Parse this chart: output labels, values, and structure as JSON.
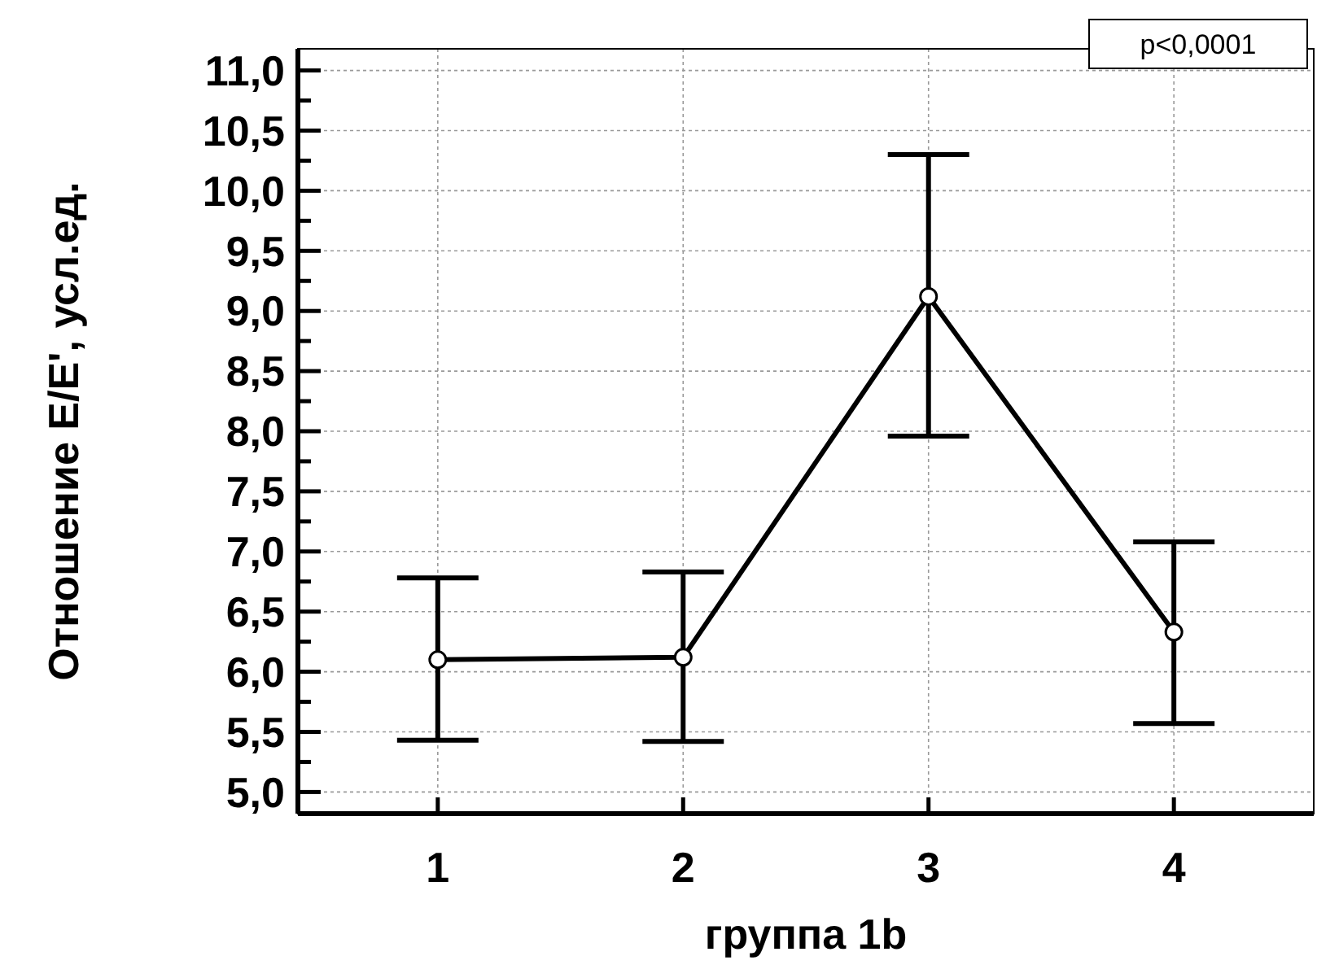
{
  "chart_data": {
    "type": "line",
    "xlabel": "группа 1b",
    "ylabel": "Отношение Е/Е', усл.ед.",
    "categories": [
      "1",
      "2",
      "3",
      "4"
    ],
    "color": "#000000",
    "values": [
      6.1,
      6.12,
      9.12,
      6.33
    ],
    "errors": [
      [
        5.43,
        6.78
      ],
      [
        5.42,
        6.83
      ],
      [
        7.96,
        10.3
      ],
      [
        5.57,
        7.08
      ]
    ],
    "ylim": [
      4.82,
      11.18
    ],
    "yticks": [
      {
        "value": 5,
        "label": "5,0"
      },
      {
        "value": 5.25,
        "label": null
      },
      {
        "value": 5.5,
        "label": "5,5"
      },
      {
        "value": 5.75,
        "label": null
      },
      {
        "value": 6,
        "label": "6,0"
      },
      {
        "value": 6.25,
        "label": null
      },
      {
        "value": 6.5,
        "label": "6,5"
      },
      {
        "value": 6.75,
        "label": null
      },
      {
        "value": 7,
        "label": "7,0"
      },
      {
        "value": 7.25,
        "label": null
      },
      {
        "value": 7.5,
        "label": "7,5"
      },
      {
        "value": 7.75,
        "label": null
      },
      {
        "value": 8,
        "label": "8,0"
      },
      {
        "value": 8.25,
        "label": null
      },
      {
        "value": 8.5,
        "label": "8,5"
      },
      {
        "value": 8.75,
        "label": null
      },
      {
        "value": 9,
        "label": "9,0"
      },
      {
        "value": 9.25,
        "label": null
      },
      {
        "value": 9.5,
        "label": "9,5"
      },
      {
        "value": 9.75,
        "label": null
      },
      {
        "value": 10,
        "label": "10,0"
      },
      {
        "value": 10.25,
        "label": null
      },
      {
        "value": 10.5,
        "label": "10,5"
      },
      {
        "value": 10.75,
        "label": null
      },
      {
        "value": 11,
        "label": "11,0"
      }
    ],
    "grid": true,
    "marker": "circle",
    "line_style": "solid",
    "annotations": [
      "p<0,0001"
    ]
  }
}
